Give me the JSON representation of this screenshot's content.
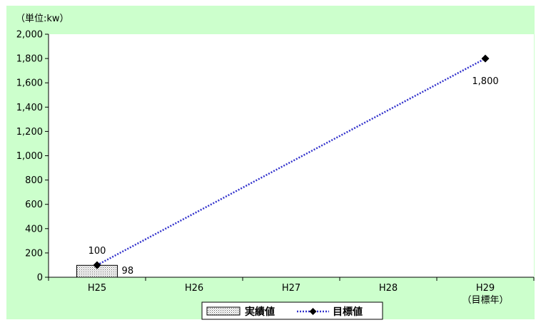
{
  "chart_data": {
    "type": "bar",
    "unit_label": "（単位:kw）",
    "categories": [
      "H25",
      "H26",
      "H27",
      "H28",
      "H29"
    ],
    "category_sublabels": [
      "",
      "",
      "",
      "",
      "（目標年）"
    ],
    "ylim": [
      0,
      2000
    ],
    "yticks": [
      0,
      200,
      400,
      600,
      800,
      1000,
      1200,
      1400,
      1600,
      1800,
      2000
    ],
    "ytick_labels": [
      "0",
      "200",
      "400",
      "600",
      "800",
      "1,000",
      "1,200",
      "1,400",
      "1,600",
      "1,800",
      "2,000"
    ],
    "grid": false,
    "legend_position": "bottom",
    "series": [
      {
        "name": "実績値",
        "kind": "bar",
        "values": [
          98,
          null,
          null,
          null,
          null
        ],
        "data_labels": [
          "98",
          "",
          "",
          "",
          ""
        ]
      },
      {
        "name": "目標値",
        "kind": "line",
        "values": [
          100,
          null,
          null,
          null,
          1800
        ],
        "data_labels": [
          "100",
          "",
          "",
          "",
          "1,800"
        ]
      }
    ],
    "colors": {
      "outer_background": "#ccffcc",
      "plot_background": "#ffffff",
      "target_line": "#3333cc",
      "marker": "#000000",
      "bar_fill": "#f2f2f2"
    }
  }
}
